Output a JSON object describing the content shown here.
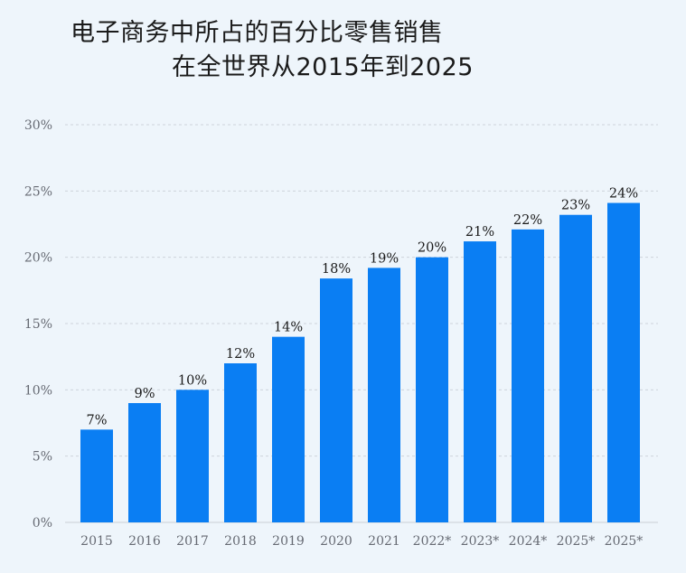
{
  "title_lines": [
    "电子商务中所占的百分比零售销售",
    "在全世界从2015年到2025"
  ],
  "chart_data": {
    "type": "bar",
    "title": "电子商务中所占的百分比零售销售 在全世界从2015年到2025",
    "categories": [
      "2015",
      "2016",
      "2017",
      "2018",
      "2019",
      "2020",
      "2021",
      "2022*",
      "2023*",
      "2024*",
      "2025*",
      "2025*"
    ],
    "values": [
      7,
      9,
      10,
      12,
      14,
      18.4,
      19.2,
      20,
      21.2,
      22.1,
      23.2,
      24.1
    ],
    "data_labels": [
      "7%",
      "9%",
      "10%",
      "12%",
      "14%",
      "18%",
      "19%",
      "20%",
      "21%",
      "22%",
      "23%",
      "24%"
    ],
    "yticks": [
      "0%",
      "5%",
      "10%",
      "15%",
      "20%",
      "25%",
      "30%"
    ],
    "ylim": [
      0,
      30
    ],
    "xlabel": "",
    "ylabel": "",
    "grid": true,
    "bar_color": "#0a7ef3"
  }
}
